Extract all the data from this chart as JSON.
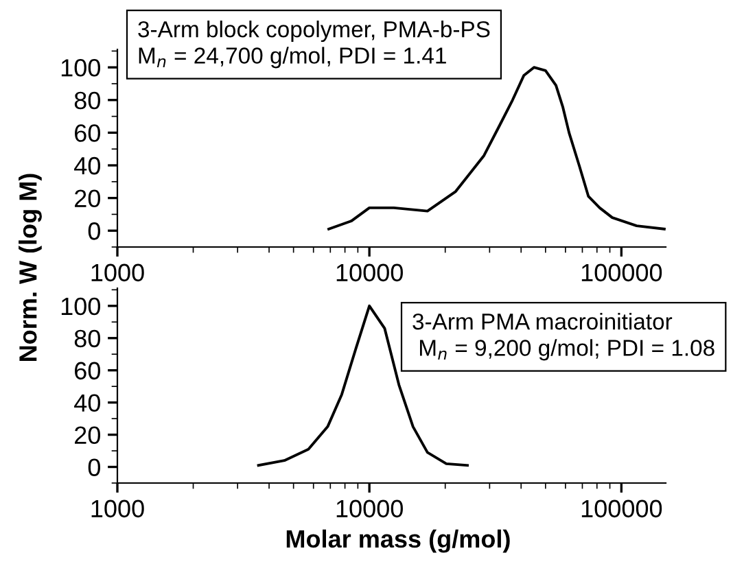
{
  "chart_data": [
    {
      "type": "line",
      "ylabel": "Norm. W (log M)",
      "log": "x",
      "xlim": [
        1000,
        150000
      ],
      "xticks": [
        1000,
        10000,
        100000
      ],
      "ylim": [
        -10,
        111
      ],
      "yticks": [
        0,
        20,
        40,
        60,
        80,
        100
      ],
      "grid": false,
      "marker": "none",
      "line_style": "solid",
      "annotations": [
        "3-Arm block copolymer, PMA-b-PS\nM$_{n}$ = 24,700 g/mol, PDI = 1.41"
      ],
      "series": [
        {
          "color": "#000000",
          "x": [
            6900,
            8500,
            10000,
            12500,
            17000,
            22000,
            28500,
            32500,
            37000,
            41000,
            45000,
            50000,
            55000,
            58500,
            62000,
            68000,
            74000,
            82000,
            92000,
            115000,
            148000
          ],
          "values": [
            1,
            6,
            14,
            14,
            12,
            24,
            46,
            63,
            80,
            95,
            100,
            98,
            89,
            76,
            60,
            40,
            21,
            14,
            8,
            3,
            1
          ]
        }
      ]
    },
    {
      "type": "line",
      "xlabel": "Molar mass (g/mol)",
      "log": "x",
      "xlim": [
        1000,
        150000
      ],
      "xticks": [
        1000,
        10000,
        100000
      ],
      "ylim": [
        -10,
        111
      ],
      "yticks": [
        0,
        20,
        40,
        60,
        80,
        100
      ],
      "grid": false,
      "marker": "none",
      "line_style": "solid",
      "annotations": [
        "3-Arm PMA macroinitiator\n M$_{n}$ = 9,200 g/mol; PDI = 1.08"
      ],
      "series": [
        {
          "color": "#000000",
          "x": [
            3630,
            4600,
            5730,
            6830,
            7770,
            8860,
            10000,
            11500,
            13100,
            14900,
            17000,
            20200,
            24500
          ],
          "values": [
            1,
            4,
            11,
            25,
            45,
            74,
            100,
            86,
            51,
            25,
            9,
            2,
            1
          ]
        }
      ]
    }
  ]
}
